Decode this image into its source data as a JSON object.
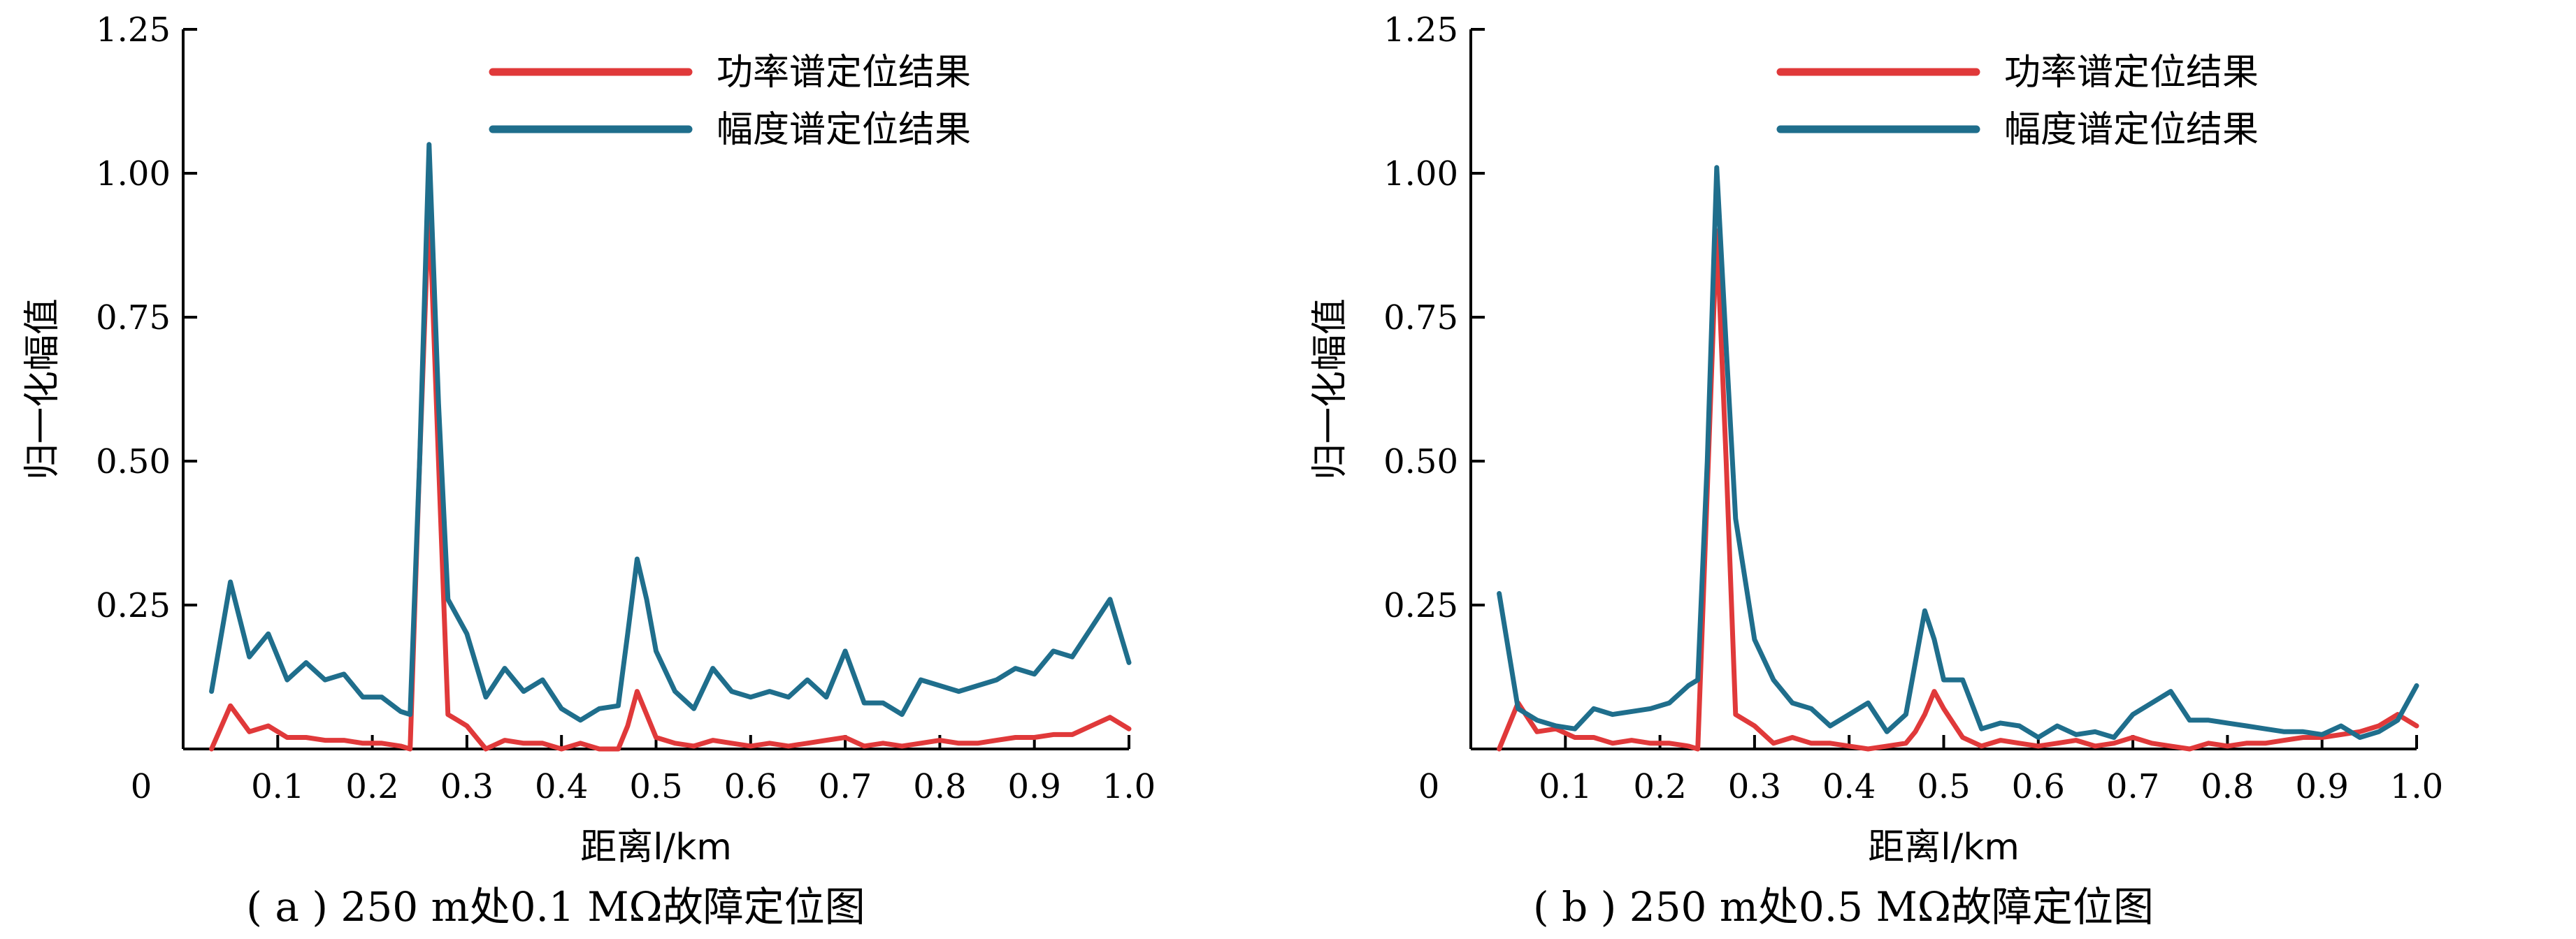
{
  "colors": {
    "power": "#e0393a",
    "amplitude": "#1f6e8c"
  },
  "chart_data": [
    {
      "type": "line",
      "caption": "( a ) 250 m处0.1 MΩ故障定位图",
      "xlabel": "距离l/km",
      "ylabel": "归一化幅值",
      "xlim": [
        0,
        1.0
      ],
      "ylim": [
        0,
        1.25
      ],
      "xticks": [
        0.1,
        0.2,
        0.3,
        0.4,
        0.5,
        0.6,
        0.7,
        0.8,
        0.9,
        1.0
      ],
      "xtick_labels": [
        "0.1",
        "0.2",
        "0.3",
        "0.4",
        "0.5",
        "0.6",
        "0.7",
        "0.8",
        "0.9",
        "1.0"
      ],
      "yticks": [
        0.25,
        0.5,
        0.75,
        1.0,
        1.25
      ],
      "ytick_labels": [
        "0.25",
        "0.50",
        "0.75",
        "1.00",
        "1.25"
      ],
      "origin_label": "0",
      "legend": {
        "position": "top-right"
      },
      "series": [
        {
          "name": "功率谱定位结果",
          "color_key": "power",
          "x": [
            0.03,
            0.05,
            0.07,
            0.09,
            0.11,
            0.13,
            0.15,
            0.17,
            0.19,
            0.21,
            0.23,
            0.24,
            0.25,
            0.26,
            0.27,
            0.28,
            0.29,
            0.3,
            0.32,
            0.34,
            0.36,
            0.38,
            0.4,
            0.42,
            0.44,
            0.46,
            0.47,
            0.48,
            0.49,
            0.5,
            0.52,
            0.54,
            0.56,
            0.58,
            0.6,
            0.62,
            0.64,
            0.66,
            0.68,
            0.7,
            0.72,
            0.74,
            0.76,
            0.78,
            0.8,
            0.82,
            0.84,
            0.86,
            0.88,
            0.9,
            0.92,
            0.94,
            0.96,
            0.98,
            1.0
          ],
          "y": [
            0.0,
            0.075,
            0.03,
            0.04,
            0.02,
            0.02,
            0.015,
            0.015,
            0.01,
            0.01,
            0.005,
            0.0,
            0.5,
            0.95,
            0.5,
            0.06,
            0.05,
            0.04,
            0.0,
            0.015,
            0.01,
            0.01,
            0.0,
            0.01,
            0.0,
            0.0,
            0.04,
            0.1,
            0.06,
            0.02,
            0.01,
            0.005,
            0.015,
            0.01,
            0.005,
            0.01,
            0.005,
            0.01,
            0.015,
            0.02,
            0.005,
            0.01,
            0.005,
            0.01,
            0.015,
            0.01,
            0.01,
            0.015,
            0.02,
            0.02,
            0.025,
            0.025,
            0.04,
            0.055,
            0.035
          ]
        },
        {
          "name": "幅度谱定位结果",
          "color_key": "amplitude",
          "x": [
            0.03,
            0.05,
            0.07,
            0.09,
            0.11,
            0.13,
            0.15,
            0.17,
            0.19,
            0.21,
            0.23,
            0.24,
            0.25,
            0.26,
            0.27,
            0.28,
            0.3,
            0.32,
            0.34,
            0.36,
            0.38,
            0.4,
            0.42,
            0.44,
            0.46,
            0.47,
            0.48,
            0.49,
            0.5,
            0.52,
            0.54,
            0.56,
            0.58,
            0.6,
            0.62,
            0.64,
            0.66,
            0.68,
            0.7,
            0.72,
            0.74,
            0.76,
            0.78,
            0.8,
            0.82,
            0.84,
            0.86,
            0.88,
            0.9,
            0.92,
            0.94,
            0.96,
            0.98,
            1.0
          ],
          "y": [
            0.1,
            0.29,
            0.16,
            0.2,
            0.12,
            0.15,
            0.12,
            0.13,
            0.09,
            0.09,
            0.065,
            0.06,
            0.5,
            1.05,
            0.6,
            0.26,
            0.2,
            0.09,
            0.14,
            0.1,
            0.12,
            0.07,
            0.05,
            0.07,
            0.075,
            0.2,
            0.33,
            0.26,
            0.17,
            0.1,
            0.07,
            0.14,
            0.1,
            0.09,
            0.1,
            0.09,
            0.12,
            0.09,
            0.17,
            0.08,
            0.08,
            0.06,
            0.12,
            0.11,
            0.1,
            0.11,
            0.12,
            0.14,
            0.13,
            0.17,
            0.16,
            0.21,
            0.26,
            0.15
          ]
        }
      ]
    },
    {
      "type": "line",
      "caption": "( b ) 250 m处0.5 MΩ故障定位图",
      "xlabel": "距离l/km",
      "ylabel": "归一化幅值",
      "xlim": [
        0,
        1.0
      ],
      "ylim": [
        0,
        1.25
      ],
      "xticks": [
        0.1,
        0.2,
        0.3,
        0.4,
        0.5,
        0.6,
        0.7,
        0.8,
        0.9,
        1.0
      ],
      "xtick_labels": [
        "0.1",
        "0.2",
        "0.3",
        "0.4",
        "0.5",
        "0.6",
        "0.7",
        "0.8",
        "0.9",
        "1.0"
      ],
      "yticks": [
        0.25,
        0.5,
        0.75,
        1.0,
        1.25
      ],
      "ytick_labels": [
        "0.25",
        "0.50",
        "0.75",
        "1.00",
        "1.25"
      ],
      "origin_label": "0",
      "legend": {
        "position": "top-right"
      },
      "series": [
        {
          "name": "功率谱定位结果",
          "color_key": "power",
          "x": [
            0.03,
            0.05,
            0.07,
            0.09,
            0.11,
            0.13,
            0.15,
            0.17,
            0.19,
            0.21,
            0.23,
            0.24,
            0.25,
            0.26,
            0.27,
            0.28,
            0.3,
            0.32,
            0.34,
            0.36,
            0.38,
            0.4,
            0.42,
            0.44,
            0.46,
            0.47,
            0.48,
            0.49,
            0.5,
            0.52,
            0.54,
            0.56,
            0.58,
            0.6,
            0.62,
            0.64,
            0.66,
            0.68,
            0.7,
            0.72,
            0.74,
            0.76,
            0.78,
            0.8,
            0.82,
            0.84,
            0.86,
            0.88,
            0.9,
            0.92,
            0.94,
            0.96,
            0.98,
            1.0
          ],
          "y": [
            0.0,
            0.08,
            0.03,
            0.035,
            0.02,
            0.02,
            0.01,
            0.015,
            0.01,
            0.01,
            0.005,
            0.0,
            0.45,
            0.9,
            0.5,
            0.06,
            0.04,
            0.01,
            0.02,
            0.01,
            0.01,
            0.005,
            0.0,
            0.005,
            0.01,
            0.03,
            0.06,
            0.1,
            0.07,
            0.02,
            0.005,
            0.015,
            0.01,
            0.005,
            0.01,
            0.015,
            0.005,
            0.01,
            0.02,
            0.01,
            0.005,
            0.0,
            0.01,
            0.005,
            0.01,
            0.01,
            0.015,
            0.02,
            0.02,
            0.025,
            0.03,
            0.04,
            0.06,
            0.04
          ]
        },
        {
          "name": "幅度谱定位结果",
          "color_key": "amplitude",
          "x": [
            0.03,
            0.05,
            0.07,
            0.09,
            0.11,
            0.13,
            0.15,
            0.17,
            0.19,
            0.21,
            0.23,
            0.24,
            0.25,
            0.26,
            0.27,
            0.28,
            0.3,
            0.32,
            0.34,
            0.36,
            0.38,
            0.4,
            0.42,
            0.44,
            0.46,
            0.47,
            0.48,
            0.49,
            0.5,
            0.52,
            0.54,
            0.56,
            0.58,
            0.6,
            0.62,
            0.64,
            0.66,
            0.68,
            0.7,
            0.72,
            0.74,
            0.76,
            0.78,
            0.8,
            0.82,
            0.84,
            0.86,
            0.88,
            0.9,
            0.92,
            0.94,
            0.96,
            0.98,
            1.0
          ],
          "y": [
            0.27,
            0.07,
            0.05,
            0.04,
            0.035,
            0.07,
            0.06,
            0.065,
            0.07,
            0.08,
            0.11,
            0.12,
            0.5,
            1.01,
            0.7,
            0.4,
            0.19,
            0.12,
            0.08,
            0.07,
            0.04,
            0.06,
            0.08,
            0.03,
            0.06,
            0.15,
            0.24,
            0.19,
            0.12,
            0.12,
            0.035,
            0.045,
            0.04,
            0.02,
            0.04,
            0.025,
            0.03,
            0.02,
            0.06,
            0.08,
            0.1,
            0.05,
            0.05,
            0.045,
            0.04,
            0.035,
            0.03,
            0.03,
            0.025,
            0.04,
            0.02,
            0.03,
            0.05,
            0.11
          ]
        }
      ]
    }
  ]
}
